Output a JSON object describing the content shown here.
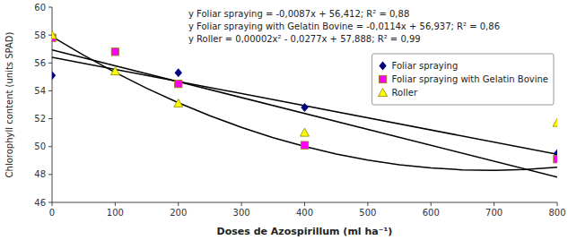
{
  "chart_data": {
    "type": "scatter",
    "xlabel": "Doses de Azospirillum (ml ha⁻¹)",
    "ylabel": "Chlorophyll content (units SPAD)",
    "xlim": [
      0,
      800
    ],
    "ylim": [
      46,
      60
    ],
    "xticks": [
      0,
      100,
      200,
      300,
      400,
      500,
      600,
      700,
      800
    ],
    "yticks": [
      46,
      48,
      50,
      52,
      54,
      56,
      58,
      60
    ],
    "grid": false,
    "legend": "upper right",
    "annotations": [
      "y Foliar spraying = -0,0087x + 56,412; R² = 0,88",
      "y Foliar spraying with Gelatin Bovine = -0,0114x + 56,937; R² = 0,86",
      "y Roller = 0,00002x² - 0,0277x + 57,888; R² = 0,99"
    ],
    "series": [
      {
        "name": "Foliar spraying",
        "type": "scatter",
        "marker": "diamond",
        "color": "#000080",
        "x": [
          0,
          200,
          400,
          800
        ],
        "values": [
          55.1,
          55.3,
          52.8,
          49.5
        ]
      },
      {
        "name": "Foliar spraying with Gelatin Bovine",
        "type": "scatter",
        "marker": "square",
        "color": "#FF00FF",
        "x": [
          0,
          100,
          200,
          400,
          800
        ],
        "values": [
          57.8,
          56.8,
          54.5,
          50.1,
          49.1
        ]
      },
      {
        "name": "Roller",
        "type": "scatter",
        "marker": "triangle",
        "color": "#FFFF00",
        "x": [
          0,
          100,
          200,
          400,
          800
        ],
        "values": [
          58.0,
          55.4,
          53.1,
          51.0,
          51.7
        ]
      },
      {
        "type": "line",
        "line_style": "solid",
        "color": "black",
        "x": [
          0,
          800
        ],
        "values": [
          56.412,
          49.452
        ]
      },
      {
        "type": "line",
        "line_style": "solid",
        "color": "black",
        "x": [
          0,
          800
        ],
        "values": [
          56.937,
          47.817
        ]
      },
      {
        "type": "line",
        "line_style": "solid",
        "color": "black",
        "x": [
          0,
          50,
          100,
          150,
          200,
          250,
          300,
          350,
          400,
          450,
          500,
          550,
          600,
          650,
          700,
          750,
          800
        ],
        "values": [
          57.888,
          56.553,
          55.318,
          54.183,
          53.148,
          52.213,
          51.378,
          50.643,
          50.008,
          49.473,
          49.038,
          48.703,
          48.468,
          48.333,
          48.298,
          48.363,
          48.528
        ]
      }
    ]
  }
}
